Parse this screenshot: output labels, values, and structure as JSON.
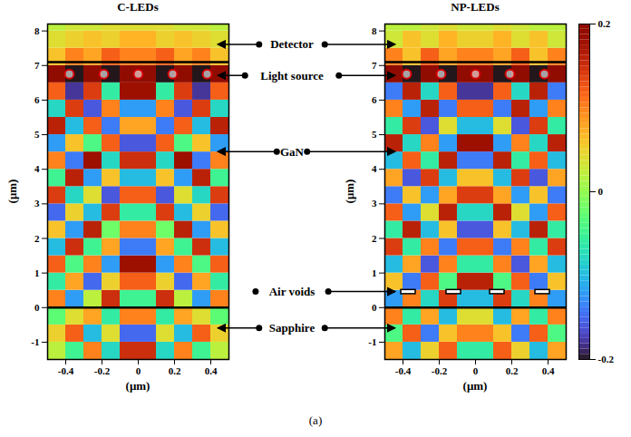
{
  "chart_data": {
    "type": "heatmap",
    "caption": "(a)",
    "colorbar": {
      "range": [
        -0.2,
        0.2
      ],
      "ticks": [
        -0.2,
        0,
        0.2
      ]
    },
    "annotations": [
      {
        "text": "Detector",
        "y": 7.6,
        "panels": [
          "C-LEDs",
          "NP-LEDs"
        ]
      },
      {
        "text": "Light source",
        "y": 6.7,
        "panels": [
          "C-LEDs",
          "NP-LEDs"
        ]
      },
      {
        "text": "GaN",
        "y": 4.5,
        "panels": [
          "C-LEDs",
          "NP-LEDs"
        ]
      },
      {
        "text": "Air voids",
        "y": 0.45,
        "panels": [
          "NP-LEDs"
        ]
      },
      {
        "text": "Sapphire",
        "y": -0.6,
        "panels": [
          "C-LEDs",
          "NP-LEDs"
        ]
      }
    ],
    "panels": [
      {
        "title": "C-LEDs",
        "xlabel": "(μm)",
        "ylabel": "(μm)",
        "xlim": [
          -0.5,
          0.5
        ],
        "ylim": [
          -1.5,
          8.2
        ],
        "xticks": [
          -0.4,
          -0.2,
          0,
          0.2,
          0.4
        ],
        "yticks": [
          -1,
          0,
          1,
          2,
          3,
          4,
          5,
          6,
          7,
          8
        ],
        "interfaces": [
          0,
          7.1
        ],
        "light_source": {
          "x": [
            -0.38,
            -0.19,
            0,
            0.19,
            0.38
          ],
          "y": 6.75
        },
        "cells": {
          "x": [
            -0.45,
            -0.35,
            -0.25,
            -0.15,
            -0.05,
            0.05,
            0.15,
            0.25,
            0.35,
            0.45
          ],
          "y": [
            -1.25,
            -0.75,
            -0.25,
            0.25,
            0.75,
            1.25,
            1.75,
            2.25,
            2.75,
            3.25,
            3.75,
            4.25,
            4.75,
            5.25,
            5.75,
            6.25,
            6.75,
            7.25,
            7.75,
            8.25
          ],
          "values": [
            [
              0.02,
              -0.05,
              0.1,
              -0.08,
              0.15,
              0.15,
              -0.08,
              0.1,
              -0.05,
              0.02
            ],
            [
              0.05,
              0.12,
              -0.1,
              0.04,
              -0.15,
              -0.15,
              0.04,
              -0.1,
              0.12,
              0.05
            ],
            [
              -0.03,
              0.04,
              0.08,
              -0.06,
              0.1,
              0.1,
              -0.06,
              0.08,
              0.04,
              -0.03
            ],
            [
              0.1,
              -0.12,
              0.02,
              0.15,
              -0.05,
              -0.05,
              0.15,
              0.02,
              -0.12,
              0.1
            ],
            [
              -0.06,
              0.08,
              -0.15,
              0.05,
              0.12,
              0.12,
              0.05,
              -0.15,
              0.08,
              -0.06
            ],
            [
              0.12,
              -0.04,
              0.1,
              -0.12,
              0.18,
              0.18,
              -0.12,
              0.1,
              -0.04,
              0.12
            ],
            [
              -0.1,
              0.15,
              -0.05,
              0.08,
              -0.14,
              -0.14,
              0.08,
              -0.05,
              0.15,
              -0.1
            ],
            [
              0.06,
              -0.12,
              0.16,
              -0.02,
              0.1,
              0.1,
              -0.02,
              0.16,
              -0.12,
              0.06
            ],
            [
              -0.15,
              0.05,
              -0.1,
              0.14,
              -0.06,
              -0.06,
              0.14,
              -0.1,
              0.05,
              -0.15
            ],
            [
              0.14,
              -0.08,
              0.04,
              -0.16,
              0.12,
              0.12,
              -0.16,
              0.04,
              -0.08,
              0.14
            ],
            [
              -0.05,
              0.16,
              -0.12,
              0.06,
              -0.1,
              -0.1,
              0.06,
              -0.12,
              0.16,
              -0.05
            ],
            [
              0.1,
              -0.14,
              0.18,
              -0.08,
              0.15,
              0.15,
              -0.08,
              0.18,
              -0.14,
              0.1
            ],
            [
              -0.12,
              0.06,
              -0.04,
              0.12,
              -0.16,
              -0.16,
              0.12,
              -0.04,
              0.06,
              -0.12
            ],
            [
              0.16,
              -0.1,
              0.12,
              -0.14,
              0.08,
              0.08,
              -0.14,
              0.12,
              -0.1,
              0.16
            ],
            [
              -0.08,
              0.14,
              -0.16,
              0.1,
              -0.12,
              -0.12,
              0.1,
              -0.16,
              0.14,
              -0.08
            ],
            [
              0.12,
              -0.18,
              0.14,
              -0.06,
              0.18,
              0.18,
              -0.06,
              0.14,
              -0.18,
              0.12
            ],
            [
              0.2,
              -0.2,
              0.2,
              -0.2,
              0.2,
              0.2,
              -0.2,
              0.2,
              -0.2,
              0.2
            ],
            [
              0.06,
              0.1,
              0.08,
              0.12,
              0.1,
              0.1,
              0.12,
              0.08,
              0.1,
              0.06
            ],
            [
              0.04,
              0.05,
              0.06,
              0.05,
              0.07,
              0.07,
              0.05,
              0.06,
              0.05,
              0.04
            ],
            [
              0.02,
              0.03,
              0.03,
              0.04,
              0.04,
              0.04,
              0.04,
              0.03,
              0.03,
              0.02
            ]
          ]
        }
      },
      {
        "title": "NP-LEDs",
        "xlabel": "(μm)",
        "ylabel": "(μm)",
        "xlim": [
          -0.5,
          0.5
        ],
        "ylim": [
          -1.5,
          8.2
        ],
        "xticks": [
          -0.4,
          -0.2,
          0,
          0.2,
          0.4
        ],
        "yticks": [
          -1,
          0,
          1,
          2,
          3,
          4,
          5,
          6,
          7,
          8
        ],
        "interfaces": [
          0,
          7.1
        ],
        "light_source": {
          "x": [
            -0.38,
            -0.19,
            0,
            0.19,
            0.38
          ],
          "y": 6.75
        },
        "air_voids": {
          "x": [
            -0.37,
            -0.12,
            0.12,
            0.37
          ],
          "y": 0.45,
          "width": 0.08,
          "height": 0.12
        },
        "cells": {
          "x": [
            -0.45,
            -0.35,
            -0.25,
            -0.15,
            -0.05,
            0.05,
            0.15,
            0.25,
            0.35,
            0.45
          ],
          "y": [
            -1.25,
            -0.75,
            -0.25,
            0.25,
            0.75,
            1.25,
            1.75,
            2.25,
            2.75,
            3.25,
            3.75,
            4.25,
            4.75,
            5.25,
            5.75,
            6.25,
            6.75,
            7.25,
            7.75,
            8.25
          ],
          "values": [
            [
              0.08,
              -0.1,
              0.05,
              0.12,
              -0.06,
              -0.06,
              0.12,
              0.05,
              -0.1,
              0.08
            ],
            [
              -0.04,
              0.12,
              -0.14,
              0.06,
              0.1,
              0.1,
              0.06,
              -0.14,
              0.12,
              -0.04
            ],
            [
              0.1,
              -0.06,
              0.08,
              -0.1,
              0.04,
              0.04,
              -0.1,
              0.08,
              -0.06,
              0.1
            ],
            [
              -0.12,
              0.1,
              -0.08,
              0.14,
              -0.1,
              -0.1,
              0.14,
              -0.08,
              0.1,
              -0.12
            ],
            [
              0.06,
              -0.14,
              0.12,
              -0.04,
              0.16,
              0.16,
              -0.04,
              0.12,
              -0.14,
              0.06
            ],
            [
              -0.1,
              0.08,
              -0.16,
              0.1,
              -0.06,
              -0.06,
              0.1,
              -0.16,
              0.08,
              -0.1
            ],
            [
              0.14,
              -0.06,
              0.1,
              -0.14,
              0.12,
              0.12,
              -0.14,
              0.1,
              -0.06,
              0.14
            ],
            [
              -0.06,
              0.16,
              -0.1,
              0.06,
              -0.16,
              -0.16,
              0.06,
              -0.1,
              0.16,
              -0.06
            ],
            [
              0.12,
              -0.12,
              0.04,
              0.16,
              -0.08,
              -0.08,
              0.16,
              0.04,
              -0.12,
              0.12
            ],
            [
              -0.14,
              0.06,
              -0.12,
              0.08,
              0.14,
              0.14,
              0.08,
              -0.12,
              0.06,
              -0.14
            ],
            [
              0.08,
              -0.16,
              0.14,
              -0.1,
              0.06,
              0.06,
              -0.1,
              0.14,
              -0.16,
              0.08
            ],
            [
              -0.1,
              0.12,
              -0.06,
              0.16,
              -0.14,
              -0.14,
              0.16,
              -0.06,
              0.12,
              -0.1
            ],
            [
              0.16,
              -0.08,
              0.1,
              -0.12,
              0.18,
              0.18,
              -0.12,
              0.1,
              -0.08,
              0.16
            ],
            [
              -0.06,
              0.14,
              -0.16,
              0.04,
              -0.1,
              -0.1,
              0.04,
              -0.16,
              0.14,
              -0.06
            ],
            [
              0.1,
              -0.12,
              0.16,
              -0.14,
              0.12,
              0.12,
              -0.14,
              0.16,
              -0.12,
              0.1
            ],
            [
              -0.14,
              0.16,
              -0.08,
              0.12,
              -0.18,
              -0.18,
              0.12,
              -0.08,
              0.16,
              -0.14
            ],
            [
              0.2,
              -0.2,
              0.2,
              -0.2,
              0.2,
              0.2,
              -0.2,
              0.2,
              -0.2,
              0.2
            ],
            [
              0.1,
              0.06,
              0.12,
              0.08,
              0.1,
              0.1,
              0.08,
              0.12,
              0.06,
              0.1
            ],
            [
              0.03,
              0.06,
              0.04,
              0.07,
              0.05,
              0.05,
              0.07,
              0.04,
              0.06,
              0.03
            ],
            [
              0.02,
              0.02,
              0.03,
              0.04,
              0.03,
              0.03,
              0.04,
              0.03,
              0.02,
              0.02
            ]
          ]
        }
      }
    ]
  }
}
